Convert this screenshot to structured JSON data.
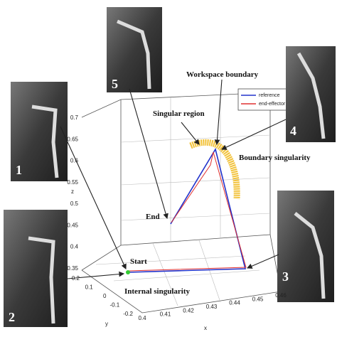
{
  "photos": [
    {
      "label": "1"
    },
    {
      "label": "2"
    },
    {
      "label": "5"
    },
    {
      "label": "4"
    },
    {
      "label": "3"
    }
  ],
  "annotations": {
    "workspace_boundary": "Workspace boundary",
    "singular_region": "Singular region",
    "boundary_singularity": "Boundary singularity",
    "end": "End",
    "start": "Start",
    "internal_singularity": "Internal singularity"
  },
  "legend": [
    "reference",
    "end-effector"
  ],
  "axes": {
    "z": {
      "label": "z",
      "ticks": [
        "0.7",
        "0.65",
        "0.6",
        "0.55",
        "0.5",
        "0.45",
        "0.4",
        "0.35"
      ]
    },
    "y": {
      "label": "y",
      "ticks": [
        "0.2",
        "0.1",
        "0",
        "-0.1",
        "-0.2"
      ]
    },
    "x": {
      "label": "x",
      "ticks": [
        "0.4",
        "0.41",
        "0.42",
        "0.43",
        "0.44",
        "0.45",
        "0.46"
      ]
    }
  }
}
